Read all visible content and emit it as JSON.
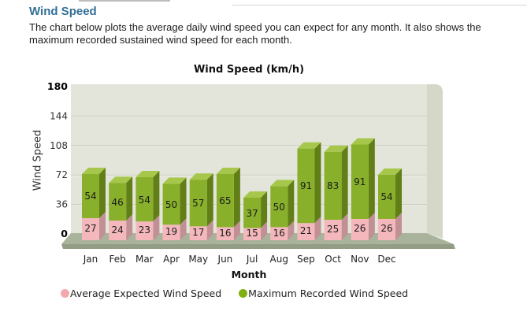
{
  "page": {
    "heading": "Wind Speed",
    "description": "The chart below plots the average daily wind speed you can expect for any month. It also shows the maximum recorded sustained wind speed for each month."
  },
  "chart": {
    "title": "Wind Speed (km/h)",
    "y_axis_title": "Wind Speed",
    "x_axis_title": "Month",
    "legend": [
      {
        "label": "Average Expected Wind Speed",
        "color": "#f2a9ae"
      },
      {
        "label": "Maximum Recorded Wind Speed",
        "color": "#7fb012"
      }
    ]
  },
  "chart_data": {
    "type": "bar",
    "stacked": true,
    "title": "Wind Speed (km/h)",
    "xlabel": "Month",
    "ylabel": "Wind Speed",
    "categories": [
      "Jan",
      "Feb",
      "Mar",
      "Apr",
      "May",
      "Jun",
      "Jul",
      "Aug",
      "Sep",
      "Oct",
      "Nov",
      "Dec"
    ],
    "series": [
      {
        "name": "Average Expected Wind Speed",
        "color": "#f4b8bc",
        "side_color": "#c09095",
        "values": [
          27,
          24,
          23,
          19,
          17,
          16,
          15,
          16,
          21,
          25,
          26,
          26
        ]
      },
      {
        "name": "Maximum Recorded Wind Speed",
        "color": "#89b02a",
        "side_color": "#627e17",
        "top_color": "#a6c74c",
        "values": [
          54,
          46,
          54,
          50,
          57,
          65,
          37,
          50,
          91,
          83,
          91,
          54
        ]
      }
    ],
    "ylim": [
      0,
      180
    ],
    "yticks": [
      0,
      36,
      72,
      108,
      144,
      180
    ],
    "grid": true,
    "legend_position": "bottom"
  },
  "colors": {
    "heading": "#336f96",
    "plot_background": "#e3e5da",
    "side_wall": "#d5d7c9",
    "floor_top": "#a9b29a",
    "floor_front": "#939d85",
    "gridline": "#c8cbbd",
    "gridline_highlight": "#eef0e5",
    "label_text": "#1c1c1c"
  }
}
